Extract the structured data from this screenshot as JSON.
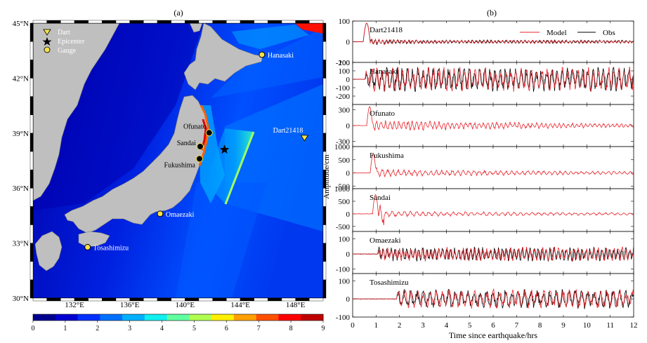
{
  "chart_data": [
    {
      "type": "heatmap",
      "panel_label": "(a)",
      "legend": [
        {
          "symbol": "triangle-down",
          "label": "Dart",
          "color": "#f5e24b"
        },
        {
          "symbol": "star",
          "label": "Epicenter",
          "color": "#000000"
        },
        {
          "symbol": "circle",
          "label": "Gauge",
          "color": "#f5e24b"
        }
      ],
      "lon_ticks": [
        132,
        136,
        140,
        144,
        148
      ],
      "lon_tick_labels": [
        "132°E",
        "136°E",
        "140°E",
        "144°E",
        "148°E"
      ],
      "lat_ticks": [
        30,
        33,
        36,
        39,
        42,
        45
      ],
      "lat_tick_labels": [
        "30°N",
        "33°N",
        "36°N",
        "39°N",
        "42°N",
        "45°N"
      ],
      "xlim": [
        129,
        150
      ],
      "ylim": [
        30,
        45
      ],
      "colorbar": {
        "range": [
          0,
          9
        ],
        "ticks": [
          0,
          1,
          2,
          3,
          4,
          5,
          6,
          7,
          8,
          9
        ],
        "colors": [
          "#00008f",
          "#0000d0",
          "#0030ff",
          "#0070ff",
          "#00b0ff",
          "#10f0ef",
          "#60ffa0",
          "#b0ff50",
          "#ffef00",
          "#ffa000",
          "#ff5000",
          "#ff0000",
          "#c00000"
        ]
      },
      "stations": [
        {
          "name": "Hanasaki",
          "lon": 145.57,
          "lat": 43.28,
          "type": "gauge"
        },
        {
          "name": "Ofunato",
          "lon": 141.75,
          "lat": 39.02,
          "type": "gauge"
        },
        {
          "name": "Sandai",
          "lon": 141.1,
          "lat": 38.27,
          "type": "gauge"
        },
        {
          "name": "Fukushima",
          "lon": 141.05,
          "lat": 37.6,
          "type": "gauge"
        },
        {
          "name": "Omaezaki",
          "lon": 138.2,
          "lat": 34.6,
          "type": "gauge"
        },
        {
          "name": "Tosashimizu",
          "lon": 132.95,
          "lat": 32.78,
          "type": "gauge"
        },
        {
          "name": "Dart21418",
          "lon": 148.65,
          "lat": 38.73,
          "type": "dart"
        }
      ],
      "epicenter": {
        "lon": 142.86,
        "lat": 38.1
      }
    },
    {
      "type": "line",
      "panel_label": "(b)",
      "xlabel": "Time since earthquake/hrs",
      "ylabel": "Amplitude/cm",
      "xlim": [
        0,
        12
      ],
      "x_ticks": [
        0,
        1,
        2,
        3,
        4,
        5,
        6,
        7,
        8,
        9,
        10,
        11,
        12
      ],
      "series": [
        {
          "name": "Model",
          "color": "#e8222a"
        },
        {
          "name": "Obs",
          "color": "#000000"
        }
      ],
      "subplots": [
        {
          "station": "Dart21418",
          "ylim": [
            -100,
            100
          ],
          "yticks": [
            -100,
            0,
            100
          ],
          "has_obs": true
        },
        {
          "station": "Hanasaki",
          "ylim": [
            -300,
            200
          ],
          "yticks": [
            -200,
            -100,
            0,
            100,
            200
          ],
          "has_obs": true
        },
        {
          "station": "Ofunato",
          "ylim": [
            -400,
            400
          ],
          "yticks": [
            -300,
            0,
            300
          ],
          "has_obs": false
        },
        {
          "station": "Fukushima",
          "ylim": [
            -600,
            1000
          ],
          "yticks": [
            -500,
            0,
            500,
            1000
          ],
          "has_obs": false
        },
        {
          "station": "Sandai",
          "ylim": [
            -700,
            1000
          ],
          "yticks": [
            -500,
            0,
            500,
            1000
          ],
          "has_obs": false
        },
        {
          "station": "Omaezaki",
          "ylim": [
            -130,
            150
          ],
          "yticks": [
            -100,
            0,
            100
          ],
          "has_obs": true
        },
        {
          "station": "Tosashimizu",
          "ylim": [
            -100,
            140
          ],
          "yticks": [
            -100,
            0,
            100
          ],
          "has_obs": true
        }
      ]
    }
  ]
}
